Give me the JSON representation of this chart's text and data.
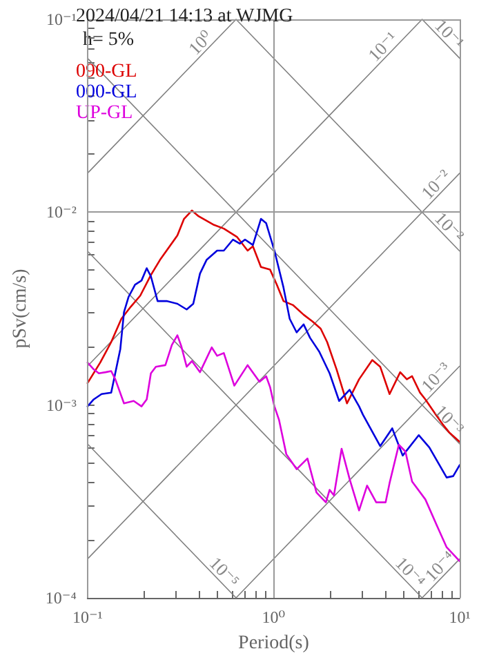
{
  "chart_data": {
    "type": "line",
    "title": "2024/04/21 14:13 at WJMG",
    "xlabel": "Period(s)",
    "ylabel": "pSv(cm/s)",
    "log": "xy",
    "grid": true,
    "marker": "none",
    "legend": "top left",
    "xlim": [
      0.1,
      10
    ],
    "ylim": [
      0.0001,
      0.1
    ],
    "xticks": [
      {
        "value": 0.1,
        "label": "10⁻¹"
      },
      {
        "value": 0.2,
        "label": null
      },
      {
        "value": 0.3,
        "label": null
      },
      {
        "value": 0.4,
        "label": null
      },
      {
        "value": 0.5,
        "label": null
      },
      {
        "value": 0.6,
        "label": null
      },
      {
        "value": 0.7,
        "label": null
      },
      {
        "value": 0.8,
        "label": null
      },
      {
        "value": 0.9,
        "label": null
      },
      {
        "value": 1,
        "label": "10⁰"
      },
      {
        "value": 2,
        "label": null
      },
      {
        "value": 3,
        "label": null
      },
      {
        "value": 4,
        "label": null
      },
      {
        "value": 5,
        "label": null
      },
      {
        "value": 6,
        "label": null
      },
      {
        "value": 7,
        "label": null
      },
      {
        "value": 8,
        "label": null
      },
      {
        "value": 9,
        "label": null
      },
      {
        "value": 10,
        "label": "10¹"
      }
    ],
    "yticks": [
      {
        "value": 0.0001,
        "label": "10⁻⁴"
      },
      {
        "value": 0.0002,
        "label": null
      },
      {
        "value": 0.0003,
        "label": null
      },
      {
        "value": 0.0004,
        "label": null
      },
      {
        "value": 0.0005,
        "label": null
      },
      {
        "value": 0.0006,
        "label": null
      },
      {
        "value": 0.0007,
        "label": null
      },
      {
        "value": 0.0008,
        "label": null
      },
      {
        "value": 0.0009,
        "label": null
      },
      {
        "value": 0.001,
        "label": "10⁻³"
      },
      {
        "value": 0.002,
        "label": null
      },
      {
        "value": 0.003,
        "label": null
      },
      {
        "value": 0.004,
        "label": null
      },
      {
        "value": 0.005,
        "label": null
      },
      {
        "value": 0.006,
        "label": null
      },
      {
        "value": 0.007,
        "label": null
      },
      {
        "value": 0.008,
        "label": null
      },
      {
        "value": 0.009,
        "label": null
      },
      {
        "value": 0.01,
        "label": "10⁻²"
      },
      {
        "value": 0.02,
        "label": null
      },
      {
        "value": 0.03,
        "label": null
      },
      {
        "value": 0.04,
        "label": null
      },
      {
        "value": 0.05,
        "label": null
      },
      {
        "value": 0.06,
        "label": null
      },
      {
        "value": 0.07,
        "label": null
      },
      {
        "value": 0.08,
        "label": null
      },
      {
        "value": 0.09,
        "label": null
      },
      {
        "value": 0.1,
        "label": "10⁻¹"
      }
    ],
    "annotations": [
      "h= 5%",
      {
        "text": "10⁰",
        "x": 0.44,
        "y": 0.07
      },
      {
        "text": "10⁻¹",
        "x": 4.2,
        "y": 0.0668
      },
      {
        "text": "10⁻¹",
        "x": 8.1,
        "y": 0.0776
      },
      {
        "text": "10⁻²",
        "x": 8.1,
        "y": 0.0129
      },
      {
        "text": "10⁻²",
        "x": 8.1,
        "y": 0.00776
      },
      {
        "text": "10⁻³",
        "x": 8.1,
        "y": 0.00129
      },
      {
        "text": "10⁻³",
        "x": 8.1,
        "y": 0.000776
      },
      {
        "text": "10⁻⁴",
        "x": 8.5,
        "y": 0.000135
      },
      {
        "text": "10⁻⁴",
        "x": 5.0,
        "y": 0.000126
      },
      {
        "text": "10⁻⁵",
        "x": 0.5,
        "y": 0.000126
      }
    ],
    "series": [
      {
        "name": "090-GL",
        "color": "#dd0000",
        "x": [
          0.1,
          0.117,
          0.134,
          0.152,
          0.171,
          0.192,
          0.219,
          0.245,
          0.304,
          0.33,
          0.364,
          0.395,
          0.473,
          0.54,
          0.635,
          0.725,
          0.774,
          0.855,
          0.957,
          1.04,
          1.13,
          1.27,
          1.45,
          1.62,
          1.79,
          1.94,
          2.18,
          2.48,
          2.88,
          3.39,
          3.74,
          4.2,
          4.79,
          5.2,
          5.55,
          6.12,
          6.54,
          7.45,
          8.09,
          8.79,
          10
        ],
        "values": [
          0.0013,
          0.00166,
          0.00212,
          0.0028,
          0.00324,
          0.00369,
          0.00472,
          0.00565,
          0.00757,
          0.00923,
          0.0102,
          0.00953,
          0.00863,
          0.00822,
          0.00745,
          0.00632,
          0.00665,
          0.0052,
          0.00504,
          0.00421,
          0.00346,
          0.0033,
          0.00294,
          0.00271,
          0.00249,
          0.00212,
          0.00153,
          0.00102,
          0.00136,
          0.00171,
          0.00158,
          0.00114,
          0.00148,
          0.00136,
          0.00141,
          0.00116,
          0.00107,
          0.000891,
          0.000796,
          0.000721,
          0.000644
        ]
      },
      {
        "name": "000-GL",
        "color": "#0000dd",
        "x": [
          0.1,
          0.108,
          0.119,
          0.134,
          0.15,
          0.157,
          0.166,
          0.18,
          0.195,
          0.208,
          0.219,
          0.238,
          0.266,
          0.304,
          0.341,
          0.37,
          0.402,
          0.436,
          0.497,
          0.54,
          0.605,
          0.658,
          0.702,
          0.774,
          0.855,
          0.912,
          1.01,
          1.13,
          1.22,
          1.33,
          1.45,
          1.57,
          1.76,
          2.0,
          2.25,
          2.56,
          2.88,
          3.02,
          3.74,
          4.34,
          4.94,
          6.03,
          6.87,
          8.51,
          9.23,
          10
        ],
        "values": [
          0.000984,
          0.00107,
          0.00114,
          0.00116,
          0.00195,
          0.00303,
          0.00363,
          0.00421,
          0.00442,
          0.00512,
          0.00465,
          0.00346,
          0.00346,
          0.00335,
          0.00313,
          0.00335,
          0.0048,
          0.00565,
          0.00632,
          0.00632,
          0.00721,
          0.00687,
          0.00721,
          0.00676,
          0.00923,
          0.00877,
          0.00632,
          0.00407,
          0.0028,
          0.00238,
          0.00262,
          0.00223,
          0.00189,
          0.00146,
          0.00105,
          0.0012,
          0.000984,
          0.000891,
          0.000612,
          0.000757,
          0.000547,
          0.000698,
          0.000603,
          0.000421,
          0.000428,
          0.000488
        ]
      },
      {
        "name": "UP-GL",
        "color": "#dd00dd",
        "x": [
          0.1,
          0.108,
          0.115,
          0.125,
          0.134,
          0.141,
          0.157,
          0.177,
          0.195,
          0.208,
          0.219,
          0.233,
          0.262,
          0.284,
          0.304,
          0.319,
          0.341,
          0.364,
          0.402,
          0.465,
          0.497,
          0.54,
          0.615,
          0.725,
          0.84,
          0.912,
          0.957,
          1.01,
          1.07,
          1.17,
          1.33,
          1.52,
          1.7,
          1.91,
          2.0,
          2.11,
          2.32,
          2.56,
          2.88,
          3.18,
          3.56,
          4.0,
          4.2,
          4.71,
          5.11,
          5.55,
          6.54,
          7.71,
          8.51,
          10
        ],
        "values": [
          0.00166,
          0.00153,
          0.00146,
          0.00148,
          0.0015,
          0.00136,
          0.00102,
          0.00105,
          0.000984,
          0.00107,
          0.00146,
          0.00158,
          0.00161,
          0.00205,
          0.0023,
          0.00202,
          0.00158,
          0.00169,
          0.00148,
          0.00199,
          0.0018,
          0.00186,
          0.00126,
          0.00161,
          0.00132,
          0.00141,
          0.00124,
          0.000984,
          0.000836,
          0.000556,
          0.000465,
          0.000528,
          0.000352,
          0.000313,
          0.000363,
          0.00034,
          0.000593,
          0.000414,
          0.000284,
          0.000382,
          0.000313,
          0.000313,
          0.000394,
          0.000622,
          0.000574,
          0.000401,
          0.000324,
          0.000226,
          0.000183,
          0.000155
        ]
      },
      {
        "color": "#808080",
        "x": [
          0.1,
          0.6283
        ],
        "values": [
          0.01592,
          0.1
        ]
      },
      {
        "color": "#808080",
        "x": [
          0.1,
          6.283
        ],
        "values": [
          0.001592,
          0.1
        ]
      },
      {
        "color": "#808080",
        "x": [
          0.1,
          10
        ],
        "values": [
          0.0001592,
          0.01592
        ]
      },
      {
        "color": "#808080",
        "x": [
          0.6283,
          10
        ],
        "values": [
          0.0001,
          0.001592
        ]
      },
      {
        "color": "#808080",
        "x": [
          6.283,
          10
        ],
        "values": [
          0.0001,
          0.0001592
        ]
      },
      {
        "color": "#808080",
        "x": [
          6.283,
          10
        ],
        "values": [
          0.1,
          0.06283
        ]
      },
      {
        "color": "#808080",
        "x": [
          0.6283,
          10
        ],
        "values": [
          0.1,
          0.006283
        ]
      },
      {
        "color": "#808080",
        "x": [
          0.1,
          10
        ],
        "values": [
          0.06283,
          0.0006283
        ]
      },
      {
        "color": "#808080",
        "x": [
          0.1,
          6.283
        ],
        "values": [
          0.006283,
          0.0001
        ]
      },
      {
        "color": "#808080",
        "x": [
          0.1,
          0.6283
        ],
        "values": [
          0.0006283,
          0.0001
        ]
      }
    ]
  }
}
